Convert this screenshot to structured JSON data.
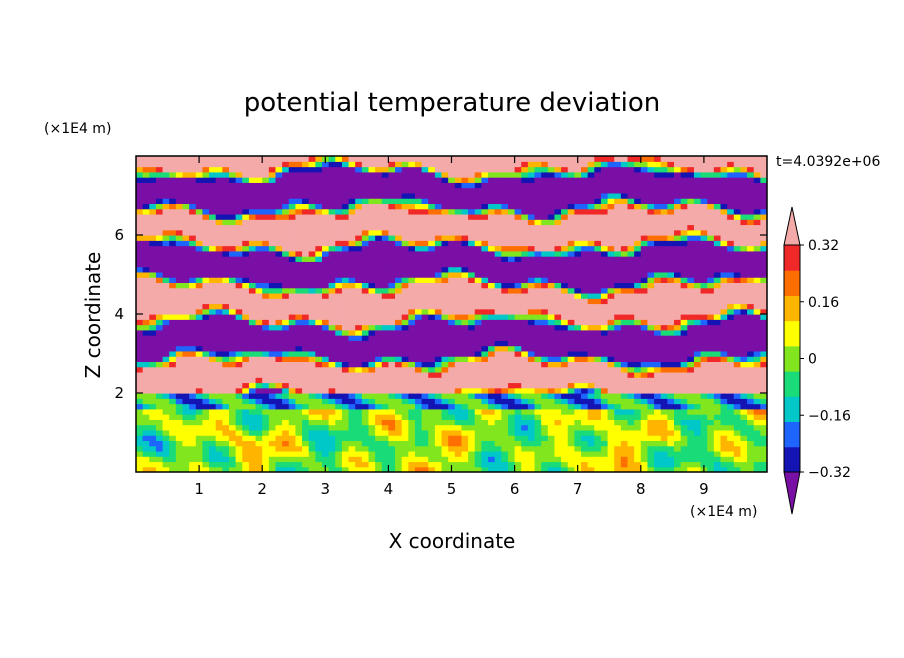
{
  "chart_data": {
    "type": "heatmap",
    "title": "potential temperature deviation",
    "xlabel": "X coordinate",
    "ylabel": "Z coordinate",
    "x_unit": "(×1E4 m)",
    "y_unit": "(×1E4 m)",
    "time_label": "t=4.0392e+06",
    "xlim": [
      0,
      10
    ],
    "ylim": [
      0,
      8
    ],
    "x_ticks": [
      1,
      2,
      3,
      4,
      5,
      6,
      7,
      8,
      9
    ],
    "y_ticks": [
      2,
      4,
      6
    ],
    "colorbar": {
      "levels": [
        -0.4,
        -0.32,
        -0.24,
        -0.16,
        -0.08,
        0,
        0.08,
        0.16,
        0.24,
        0.32,
        0.4
      ],
      "tick_labels": [
        "0.32",
        "0.16",
        "0",
        "−0.16",
        "−0.32"
      ],
      "tick_values": [
        0.32,
        0.16,
        0,
        -0.16,
        -0.32
      ],
      "colors": [
        "#7a0fa6",
        "#1414b4",
        "#1e64ff",
        "#00c8c8",
        "#19dc78",
        "#82e61e",
        "#ffff00",
        "#ffb400",
        "#ff6e00",
        "#f02828",
        "#f5aaaa"
      ],
      "extend": "both"
    }
  }
}
